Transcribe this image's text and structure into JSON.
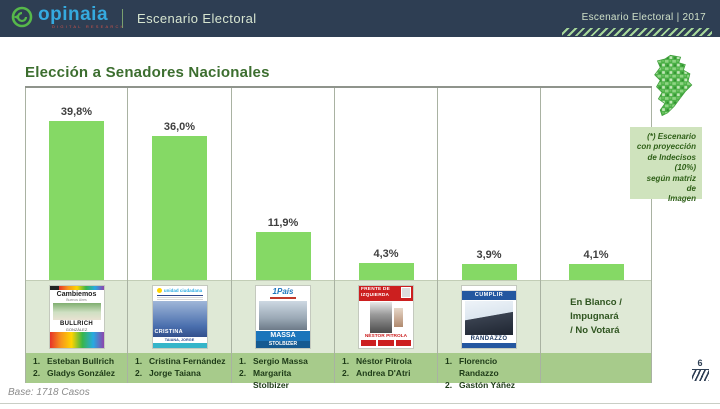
{
  "header": {
    "logo_text": "opinaia",
    "logo_subtext": "DIGITAL RESEARCH",
    "section_title": "Escenario Electoral",
    "right_label": "Escenario Electoral | 2017"
  },
  "slide": {
    "title": "Elección a Senadores Nacionales",
    "note": "(*) Escenario\ncon proyección\nde Indecisos\n(10%)\nsegún matriz de\nImagen",
    "blank_option": "En Blanco /\nImpugnará\n/ No Votará",
    "base_label": "Base: 1718 Casos",
    "page_number": "6"
  },
  "chart_data": {
    "type": "bar",
    "title": "Elección a Senadores Nacionales",
    "categories": [
      "Cambiemos — Esteban Bullrich / Gladys González",
      "Unidad Ciudadana — Cristina Fernández / Jorge Taiana",
      "1País — Sergio Massa / Margarita Stolbizer",
      "Frente de Izquierda — Néstor Pitrola / Andrea D'Atri",
      "Cumplir — Florencio Randazzo / Gastón Yáñez",
      "En Blanco / Impugnará / No Votará"
    ],
    "values": [
      39.8,
      36.0,
      11.9,
      4.3,
      3.9,
      4.1
    ],
    "value_labels": [
      "39,8%",
      "36,0%",
      "11,9%",
      "4,3%",
      "3,9%",
      "4,1%"
    ],
    "bar_color": "#85d965",
    "ylim": [
      0,
      45
    ],
    "grid": false,
    "legend": false
  },
  "columns": [
    {
      "pct": "39,8%",
      "rank1": "1.",
      "c1": "Esteban Bullrich",
      "rank2": "2.",
      "c2": "Gladys González"
    },
    {
      "pct": "36,0%",
      "rank1": "1.",
      "c1": "Cristina Fernández",
      "rank2": "2.",
      "c2": "Jorge Taiana"
    },
    {
      "pct": "11,9%",
      "rank1": "1.",
      "c1": "Sergio Massa",
      "rank2": "2.",
      "c2": "Margarita Stolbizer"
    },
    {
      "pct": "4,3%",
      "rank1": "1.",
      "c1": "Néstor Pitrola",
      "rank2": "2.",
      "c2": "Andrea D'Atri"
    },
    {
      "pct": "3,9%",
      "rank1": "1.",
      "c1": "Florencio Randazzo",
      "rank2": "2.",
      "c2": "Gastón Yáñez"
    },
    {
      "pct": "4,1%"
    }
  ],
  "ballots": {
    "cambiemos": {
      "party": "Cambiemos",
      "region": "Buenos Aires",
      "candidate1": "BULLRICH",
      "candidate2": "GONZÁLEZ"
    },
    "unidad": {
      "party": "unidad ciudadana",
      "candidate1": "CRISTINA",
      "list_line": "TAIANA, JORGE"
    },
    "pais": {
      "party": "1País",
      "candidate1": "MASSA",
      "candidate2": "STOLBIZER"
    },
    "fit": {
      "party_line1": "FRENTE DE",
      "party_line2": "IZQUIERDA",
      "candidate1": "NÉSTOR PITROLA"
    },
    "cumplir": {
      "party": "CUMPLIR",
      "candidate1": "RANDAZZO"
    }
  }
}
